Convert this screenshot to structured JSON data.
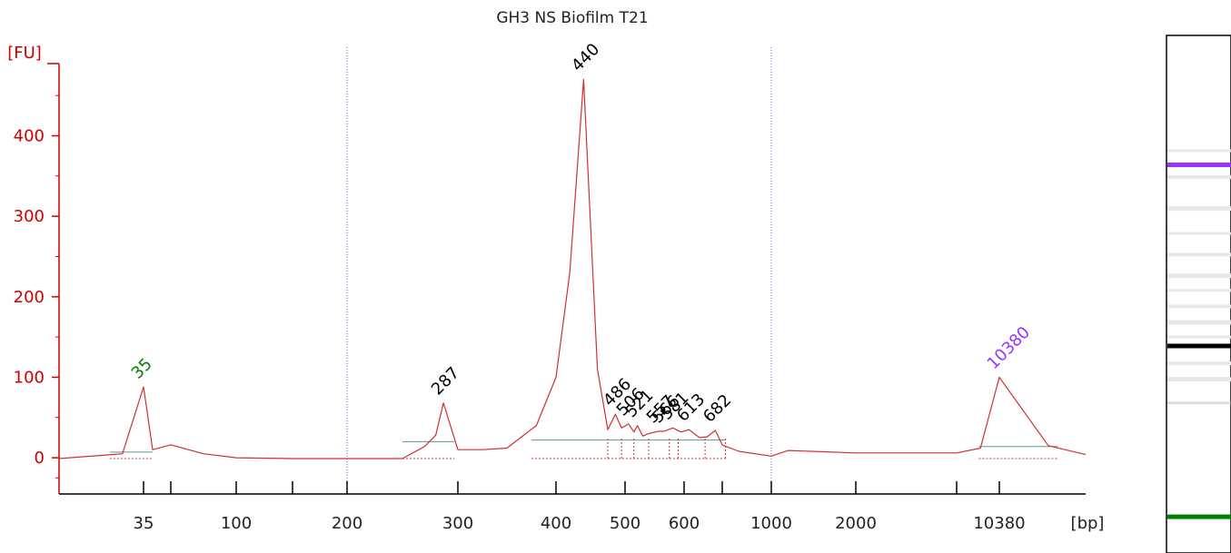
{
  "chart_data": {
    "type": "line",
    "title": "GH3 NS Biofilm T21",
    "ylabel": "[FU]",
    "xlabel": "[bp]",
    "ylim": [
      -45,
      510
    ],
    "y_ticks": [
      0,
      100,
      200,
      300,
      400
    ],
    "x_tick_labels": [
      "35",
      "100",
      "200",
      "300",
      "400",
      "500",
      "600",
      "1000",
      "2000",
      "10380"
    ],
    "series": [
      {
        "name": "",
        "x": [
          "15",
          "30",
          "35",
          "40",
          "50",
          "75",
          "100",
          "150",
          "200",
          "250",
          "270",
          "280",
          "287",
          "300",
          "325",
          "350",
          "380",
          "400",
          "420",
          "440",
          "460",
          "475",
          "486",
          "495",
          "506",
          "515",
          "521",
          "530",
          "540",
          "557",
          "566",
          "581",
          "595",
          "613",
          "640",
          "660",
          "682",
          "700",
          "800",
          "1000",
          "1200",
          "2000",
          "5000",
          "8000",
          "10380",
          "13000",
          "15000"
        ],
        "values": [
          -1,
          5,
          88,
          10,
          16,
          5,
          0,
          -1,
          -1,
          -1,
          14,
          28,
          68,
          10,
          10,
          12,
          40,
          100,
          230,
          470,
          110,
          35,
          54,
          37,
          42,
          32,
          40,
          27,
          30,
          33,
          33,
          37,
          32,
          35,
          25,
          26,
          34,
          16,
          8,
          2,
          9,
          6,
          6,
          12,
          100,
          15,
          4
        ]
      }
    ],
    "peaks": [
      {
        "label": "35",
        "x": "35",
        "y": 88,
        "color": "#008000"
      },
      {
        "label": "287",
        "x": "287",
        "y": 68,
        "color": "#000000"
      },
      {
        "label": "440",
        "x": "440",
        "y": 470,
        "color": "#000000"
      },
      {
        "label": "486",
        "x": "486",
        "y": 54,
        "color": "#000000"
      },
      {
        "label": "506",
        "x": "506",
        "y": 42,
        "color": "#000000"
      },
      {
        "label": "521",
        "x": "521",
        "y": 40,
        "color": "#000000"
      },
      {
        "label": "557",
        "x": "557",
        "y": 33,
        "color": "#000000"
      },
      {
        "label": "566",
        "x": "566",
        "y": 33,
        "color": "#000000"
      },
      {
        "label": "581",
        "x": "581",
        "y": 37,
        "color": "#000000"
      },
      {
        "label": "613",
        "x": "613",
        "y": 35,
        "color": "#000000"
      },
      {
        "label": "682",
        "x": "682",
        "y": 34,
        "color": "#000000"
      },
      {
        "label": "10380",
        "x": "10380",
        "y": 100,
        "color": "#9933ff"
      }
    ],
    "gridlines_bp": [
      "200",
      "1000"
    ],
    "colors": {
      "axis": "#cc0000",
      "trace": "#d03030",
      "grid": "#6666cc",
      "baseline": "#5a9a8a",
      "lower_marker": "#008000",
      "upper_marker": "#9933ff"
    }
  },
  "gel": {
    "bands": [
      {
        "label": "upper-marker",
        "level": 0.25,
        "color": "#9933ff",
        "intensity": 1
      },
      {
        "label": "main-band",
        "level": 0.6,
        "color": "#000000",
        "intensity": 1
      },
      {
        "label": "faint-band",
        "level": 0.71,
        "color": "#bbbbbb",
        "intensity": 0.5
      },
      {
        "label": "lower-marker",
        "level": 0.93,
        "color": "#008000",
        "intensity": 1
      }
    ]
  }
}
